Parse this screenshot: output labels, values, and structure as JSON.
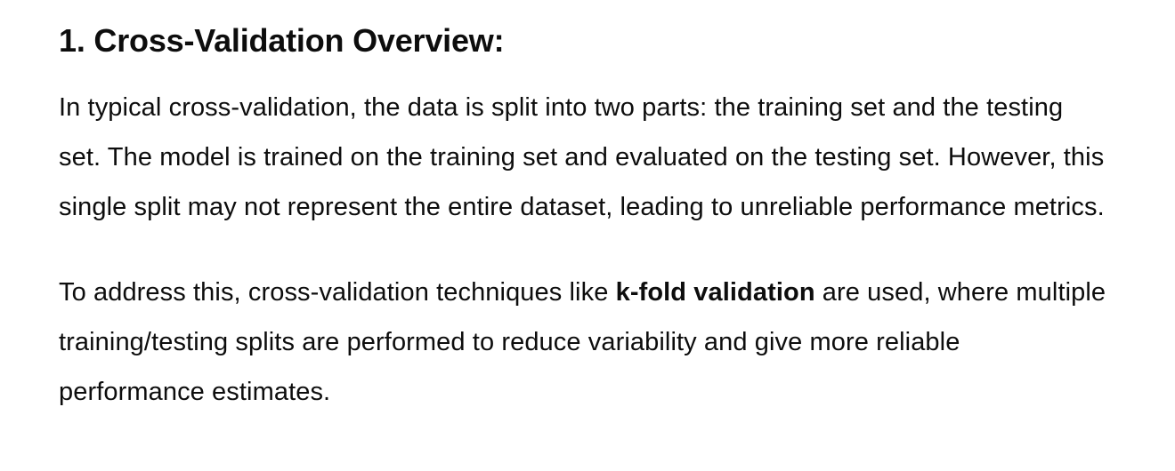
{
  "section": {
    "heading": "1. Cross-Validation Overview:"
  },
  "paragraph1": {
    "text": "In typical cross-validation, the data is split into two parts: the training set and the testing set. The model is trained on the training set and evaluated on the testing set. However, this single split may not represent the entire dataset, leading to unreliable performance metrics."
  },
  "paragraph2": {
    "before": "To address this, cross-validation techniques like ",
    "bold": "k-fold validation",
    "after": " are used, where multiple training/testing splits are performed to reduce variability and give more reliable performance estimates."
  }
}
